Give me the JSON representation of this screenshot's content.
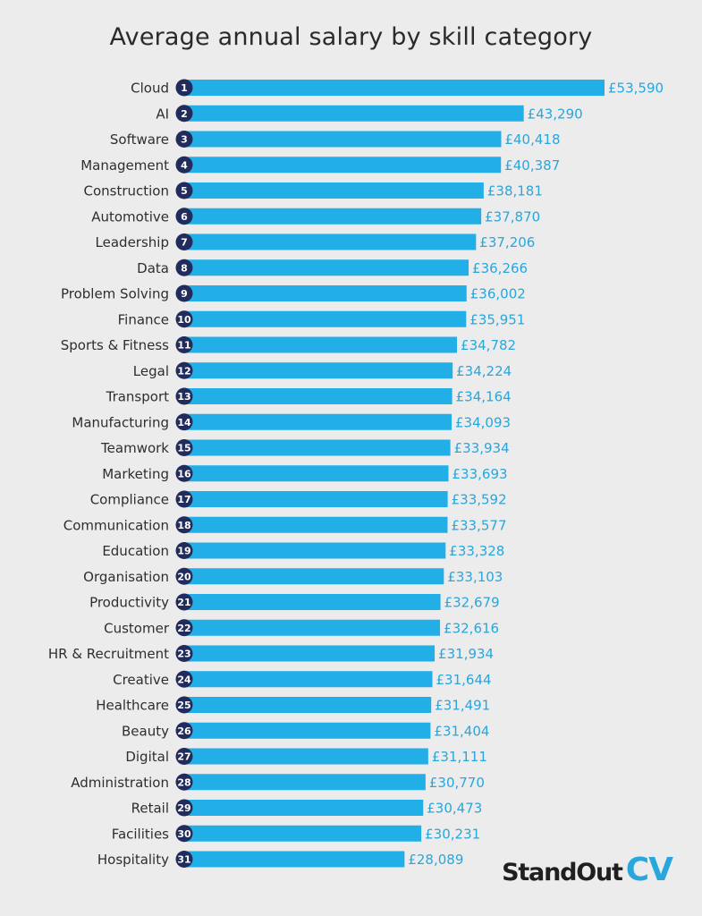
{
  "chart_data": {
    "type": "bar",
    "orientation": "horizontal",
    "title": "Average annual salary by skill category",
    "categories": [
      "Cloud",
      "AI",
      "Software",
      "Management",
      "Construction",
      "Automotive",
      "Leadership",
      "Data",
      "Problem Solving",
      "Finance",
      "Sports & Fitness",
      "Legal",
      "Transport",
      "Manufacturing",
      "Teamwork",
      "Marketing",
      "Compliance",
      "Communication",
      "Education",
      "Organisation",
      "Productivity",
      "Customer",
      "HR & Recruitment",
      "Creative",
      "Healthcare",
      "Beauty",
      "Digital",
      "Administration",
      "Retail",
      "Facilities",
      "Hospitality"
    ],
    "ranks": [
      "1",
      "2",
      "3",
      "4",
      "5",
      "6",
      "7",
      "8",
      "9",
      "10",
      "11",
      "12",
      "13",
      "14",
      "15",
      "16",
      "17",
      "18",
      "19",
      "20",
      "21",
      "22",
      "23",
      "24",
      "25",
      "26",
      "27",
      "28",
      "29",
      "30",
      "31"
    ],
    "values": [
      53590,
      43290,
      40418,
      40387,
      38181,
      37870,
      37206,
      36266,
      36002,
      35951,
      34782,
      34224,
      34164,
      34093,
      33934,
      33693,
      33592,
      33577,
      33328,
      33103,
      32679,
      32616,
      31934,
      31644,
      31491,
      31404,
      31111,
      30770,
      30473,
      30231,
      28089
    ],
    "value_labels": [
      "£53,590",
      "£43,290",
      "£40,418",
      "£40,387",
      "£38,181",
      "£37,870",
      "£37,206",
      "£36,266",
      "£36,002",
      "£35,951",
      "£34,782",
      "£34,224",
      "£34,164",
      "£34,093",
      "£33,934",
      "£33,693",
      "£33,592",
      "£33,577",
      "£33,328",
      "£33,103",
      "£32,679",
      "£32,616",
      "£31,934",
      "£31,644",
      "£31,491",
      "£31,404",
      "£31,111",
      "£30,770",
      "£30,473",
      "£30,231",
      "£28,089"
    ],
    "xlim": [
      0,
      53590
    ],
    "grid": false,
    "colors": {
      "bar": "#22aee6",
      "rank_badge": "#222c5c",
      "value_text": "#29a6dc"
    }
  },
  "logo": {
    "part1": "StandOut",
    "part2": "CV"
  }
}
